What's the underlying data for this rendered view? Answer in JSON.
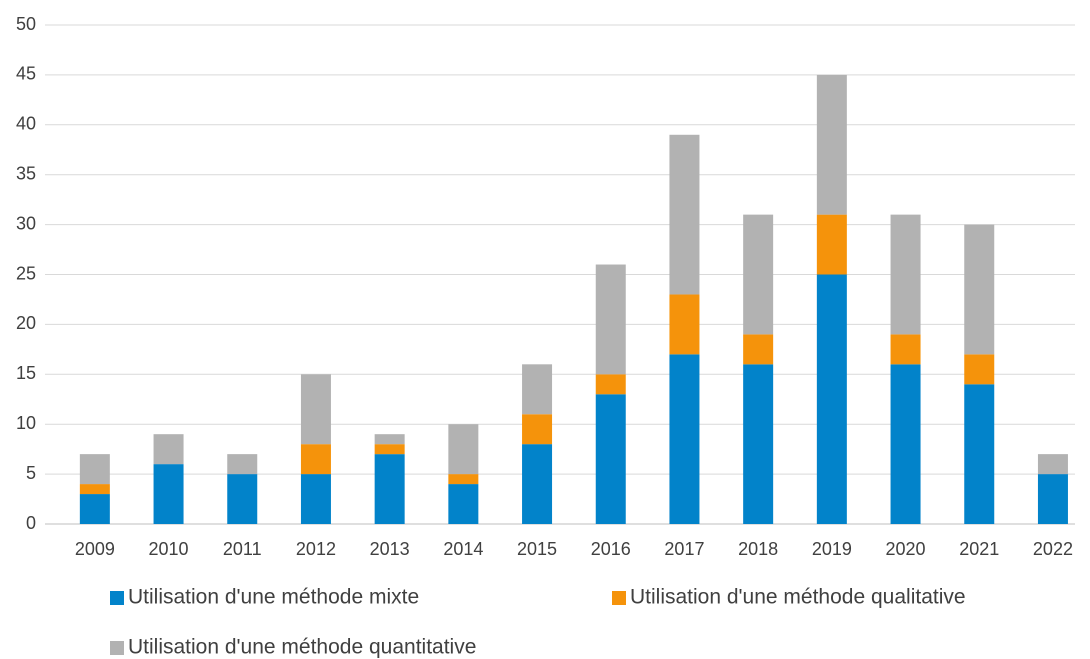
{
  "chart_data": {
    "type": "stacked_bar",
    "categories": [
      "2009",
      "2010",
      "2011",
      "2012",
      "2013",
      "2014",
      "2015",
      "2016",
      "2017",
      "2018",
      "2019",
      "2020",
      "2021",
      "2022"
    ],
    "series": [
      {
        "name": "Utilisation d'une méthode mixte",
        "color": "#0283ca",
        "values": [
          3,
          6,
          5,
          5,
          7,
          4,
          8,
          13,
          17,
          16,
          25,
          16,
          14,
          5
        ]
      },
      {
        "name": "Utilisation d'une méthode qualitative",
        "color": "#f5930b",
        "values": [
          1,
          0,
          0,
          3,
          1,
          1,
          3,
          2,
          6,
          3,
          6,
          3,
          3,
          0
        ]
      },
      {
        "name": "Utilisation d'une méthode quantitative",
        "color": "#b2b2b2",
        "values": [
          3,
          3,
          2,
          7,
          1,
          5,
          5,
          11,
          16,
          12,
          14,
          12,
          13,
          2
        ]
      }
    ],
    "ylim": [
      0,
      50
    ],
    "yticks": [
      0,
      5,
      10,
      15,
      20,
      25,
      30,
      35,
      40,
      45,
      50
    ],
    "grid": true,
    "legend": "bottom"
  }
}
